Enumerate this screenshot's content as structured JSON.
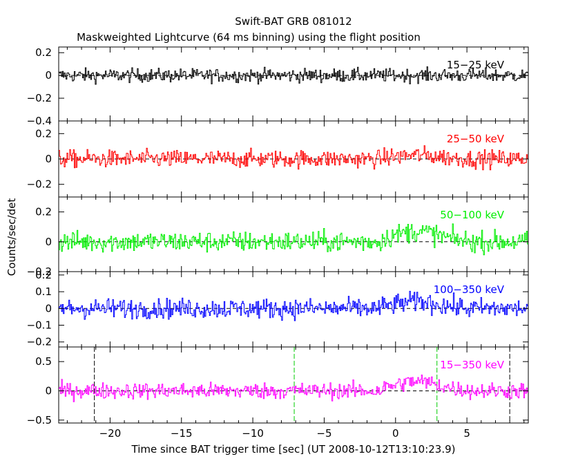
{
  "chart_data": {
    "type": "line",
    "title": "Swift-BAT GRB 081012",
    "subtitle": "Maskweighted Lightcurve (64 ms binning) using the flight position",
    "xlabel": "Time since BAT trigger time [sec] (UT 2008-10-12T13:10:23.9)",
    "ylabel": "Counts/sec/det",
    "xlim": [
      -23.6,
      9.3
    ],
    "x_ticks": [
      -20,
      -15,
      -10,
      -5,
      0,
      5
    ],
    "bin_width_s": 0.064,
    "panels": [
      {
        "name": "15-25 keV",
        "label": "15−25 keV",
        "color": "#000000",
        "ylim": [
          -0.4,
          0.25
        ],
        "yticks": [
          0.2,
          0,
          -0.2,
          -0.4
        ],
        "ytick_labels": [
          "0.2",
          "0",
          "−0.2",
          "−0.4"
        ],
        "noise_sd": 0.03,
        "signal_peak": 0.0,
        "vlines": []
      },
      {
        "name": "25-50 keV",
        "label": "25−50 keV",
        "color": "#ff0000",
        "ylim": [
          -0.3,
          0.3
        ],
        "yticks": [
          0.2,
          0,
          -0.2
        ],
        "ytick_labels": [
          "0.2",
          "0",
          "−0.2"
        ],
        "noise_sd": 0.035,
        "signal_peak": 0.03,
        "vlines": []
      },
      {
        "name": "50-100 keV",
        "label": "50−100 keV",
        "color": "#00ee00",
        "ylim": [
          -0.2,
          0.3
        ],
        "yticks": [
          0.2,
          0,
          -0.2
        ],
        "ytick_labels": [
          "0.2",
          "0",
          "−0.2"
        ],
        "noise_sd": 0.035,
        "signal_peak": 0.07,
        "vlines": []
      },
      {
        "name": "100-350 keV",
        "label": "100−350 keV",
        "color": "#0000ff",
        "ylim": [
          -0.23,
          0.22
        ],
        "yticks": [
          0.2,
          0.1,
          0,
          -0.1,
          -0.2
        ],
        "ytick_labels": [
          "0.2",
          "0.1",
          "0",
          "−0.1",
          "−0.2"
        ],
        "noise_sd": 0.03,
        "signal_peak": 0.04,
        "vlines": []
      },
      {
        "name": "15-350 keV",
        "label": "15−350 keV",
        "color": "#ff00ff",
        "ylim": [
          -0.55,
          0.75
        ],
        "yticks": [
          0.5,
          0,
          -0.5
        ],
        "ytick_labels": [
          "0.5",
          "0",
          "−0.5"
        ],
        "noise_sd": 0.07,
        "signal_peak": 0.16,
        "vlines": [
          {
            "x": -21.1,
            "color": "#000000"
          },
          {
            "x": -7.1,
            "color": "#00cc00"
          },
          {
            "x": 2.9,
            "color": "#00cc00"
          },
          {
            "x": 8.0,
            "color": "#000000"
          }
        ]
      }
    ]
  }
}
